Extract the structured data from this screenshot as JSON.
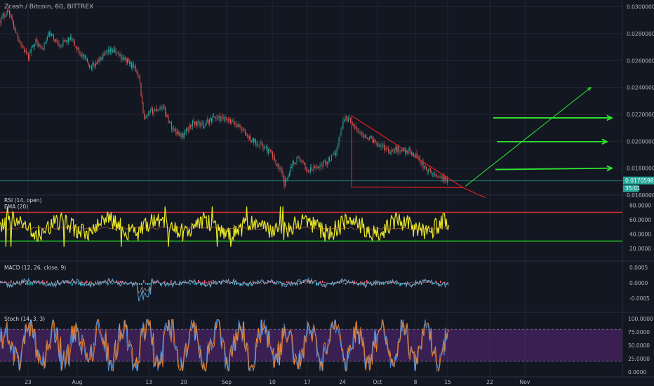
{
  "title": "Zcash / Bitcoin, 60, BITTREX",
  "x_labels": [
    "23",
    "Aug",
    "13",
    "20",
    "Sep",
    "10",
    "17",
    "24",
    "Oct",
    "8",
    "15",
    "22",
    "Nov"
  ],
  "price_axis_labels": [
    "0.03000000",
    "0.02800000",
    "0.02600000",
    "0.02400000",
    "0.02200000",
    "0.02000000",
    "0.01800000",
    "0.01600000"
  ],
  "price_tag": "0.01705982",
  "countdown": "35:01",
  "colors": {
    "background": "#131722",
    "grid": "#232632",
    "up": "#26a69a",
    "down": "#ef5350",
    "rsi": "#e8e825",
    "arrow": "#2ee62e",
    "triangle": "#ff2020",
    "stoch_k": "#4a90e2",
    "stoch_d": "#f0862c",
    "stoch_band": "#6a2a8f"
  },
  "indicators": {
    "rsi": {
      "label": "RSI (14, open)",
      "sub_label": "EMA (20)",
      "axis": [
        "80.0000",
        "60.0000",
        "40.0000",
        "20.0000"
      ]
    },
    "macd": {
      "label": "MACD (12, 26, close, 9)",
      "axis": [
        "0.0005",
        "0.0000",
        "-0.0005"
      ]
    },
    "stoch": {
      "label": "Stoch (14, 3, 3)",
      "axis": [
        "100.0000",
        "75.0000",
        "50.0000",
        "25.0000",
        "0.0000"
      ]
    }
  },
  "chart_data": {
    "type": "candlestick",
    "symbol": "Zcash / Bitcoin",
    "interval": "60",
    "exchange": "BITTREX",
    "ylim": [
      0.016,
      0.0305
    ],
    "last_price": 0.01705982,
    "price_path": [
      [
        0,
        0.029
      ],
      [
        12,
        0.0298
      ],
      [
        20,
        0.0285
      ],
      [
        30,
        0.0272
      ],
      [
        40,
        0.0262
      ],
      [
        50,
        0.0275
      ],
      [
        60,
        0.0268
      ],
      [
        70,
        0.028
      ],
      [
        85,
        0.0272
      ],
      [
        100,
        0.0276
      ],
      [
        115,
        0.0265
      ],
      [
        130,
        0.0255
      ],
      [
        145,
        0.0262
      ],
      [
        160,
        0.0268
      ],
      [
        175,
        0.0262
      ],
      [
        185,
        0.0258
      ],
      [
        198,
        0.025
      ],
      [
        205,
        0.0215
      ],
      [
        215,
        0.0222
      ],
      [
        232,
        0.0226
      ],
      [
        245,
        0.021
      ],
      [
        260,
        0.0204
      ],
      [
        275,
        0.0214
      ],
      [
        290,
        0.0212
      ],
      [
        305,
        0.0218
      ],
      [
        320,
        0.0216
      ],
      [
        340,
        0.0212
      ],
      [
        355,
        0.0202
      ],
      [
        370,
        0.0198
      ],
      [
        385,
        0.0192
      ],
      [
        400,
        0.0178
      ],
      [
        405,
        0.0168
      ],
      [
        415,
        0.0182
      ],
      [
        425,
        0.0188
      ],
      [
        438,
        0.0178
      ],
      [
        450,
        0.018
      ],
      [
        465,
        0.0185
      ],
      [
        478,
        0.019
      ],
      [
        490,
        0.0218
      ],
      [
        500,
        0.0215
      ],
      [
        512,
        0.0206
      ],
      [
        525,
        0.0203
      ],
      [
        540,
        0.0198
      ],
      [
        555,
        0.0193
      ],
      [
        568,
        0.0194
      ],
      [
        580,
        0.0193
      ],
      [
        595,
        0.0189
      ],
      [
        605,
        0.018
      ],
      [
        615,
        0.0176
      ],
      [
        628,
        0.0174
      ],
      [
        637,
        0.017
      ]
    ],
    "rsi": {
      "overbought": 70,
      "oversold": 30
    },
    "stoch": {
      "upper_band": 80,
      "lower_band": 20
    },
    "annotations": {
      "triangle": [
        [
          501,
          0.0219
        ],
        [
          660,
          0.01655
        ],
        [
          501,
          0.0166
        ]
      ],
      "triangle_tail": [
        [
          660,
          0.01655
        ],
        [
          692,
          0.0158
        ]
      ],
      "support_line_y": 0.01705982,
      "arrows": [
        {
          "from": [
            703,
            0.02174
          ],
          "to": [
            872,
            0.02174
          ]
        },
        {
          "from": [
            708,
            0.01997
          ],
          "to": [
            865,
            0.01997
          ]
        },
        {
          "from": [
            706,
            0.0179
          ],
          "to": [
            872,
            0.018
          ]
        },
        {
          "from": [
            663,
            0.01665
          ],
          "to": [
            842,
            0.024
          ]
        }
      ]
    }
  }
}
